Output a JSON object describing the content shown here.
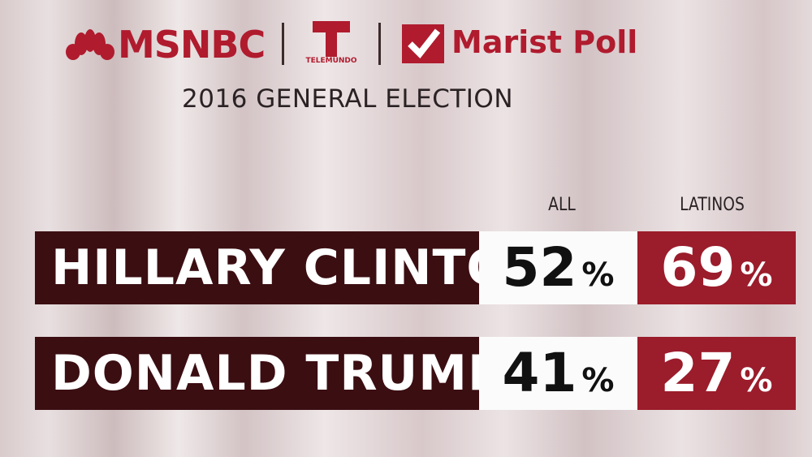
{
  "header": {
    "logos": [
      "MSNBC",
      "TELEMUNDO",
      "Marist Poll"
    ],
    "title": "2016 GENERAL ELECTION"
  },
  "table": {
    "columns": [
      "ALL",
      "LATINOS"
    ],
    "rows": [
      {
        "name": "HILLARY CLINTON",
        "cells": [
          {
            "number": 52,
            "unit": "%"
          },
          {
            "number": 69,
            "unit": "%"
          }
        ]
      },
      {
        "name": "DONALD TRUMP",
        "cells": [
          {
            "number": 41,
            "unit": "%"
          },
          {
            "number": 27,
            "unit": "%"
          }
        ]
      }
    ]
  }
}
